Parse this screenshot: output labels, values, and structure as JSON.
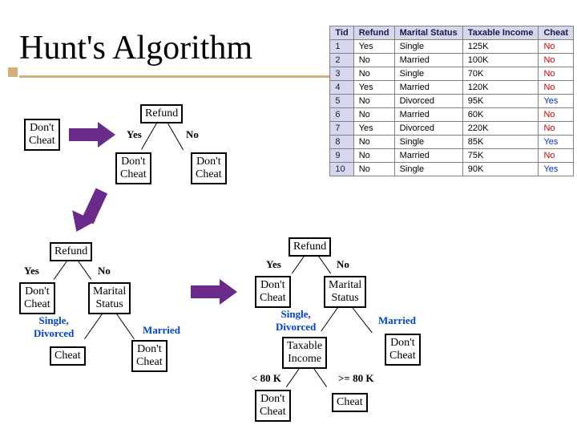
{
  "title": "Hunt's Algorithm",
  "attr_refund": "Refund",
  "attr_marital": "Marital\nStatus",
  "attr_taxable": "Taxable\nIncome",
  "leaf_dont": "Don't\nCheat",
  "leaf_cheat": "Cheat",
  "lbl_yes": "Yes",
  "lbl_no": "No",
  "lbl_single_div": "Single,\nDivorced",
  "lbl_married": "Married",
  "lbl_lt80": "< 80 K",
  "lbl_ge80": ">= 80 K",
  "colors": {
    "arrow": "#6b2b8a",
    "node_border": "#000000",
    "rule": "#d4af7a",
    "table_header_bg": "#d6d6ec",
    "table_border": "#808080",
    "cheat_no": "#cc0000",
    "cheat_yes": "#0033cc",
    "link_blue": "#0044cc"
  },
  "table": {
    "headers": [
      "Tid",
      "Refund",
      "Marital Status",
      "Taxable Income",
      "Cheat"
    ],
    "rows": [
      [
        "1",
        "Yes",
        "Single",
        "125K",
        "No"
      ],
      [
        "2",
        "No",
        "Married",
        "100K",
        "No"
      ],
      [
        "3",
        "No",
        "Single",
        "70K",
        "No"
      ],
      [
        "4",
        "Yes",
        "Married",
        "120K",
        "No"
      ],
      [
        "5",
        "No",
        "Divorced",
        "95K",
        "Yes"
      ],
      [
        "6",
        "No",
        "Married",
        "60K",
        "No"
      ],
      [
        "7",
        "Yes",
        "Divorced",
        "220K",
        "No"
      ],
      [
        "8",
        "No",
        "Single",
        "85K",
        "Yes"
      ],
      [
        "9",
        "No",
        "Married",
        "75K",
        "No"
      ],
      [
        "10",
        "No",
        "Single",
        "90K",
        "Yes"
      ]
    ]
  }
}
